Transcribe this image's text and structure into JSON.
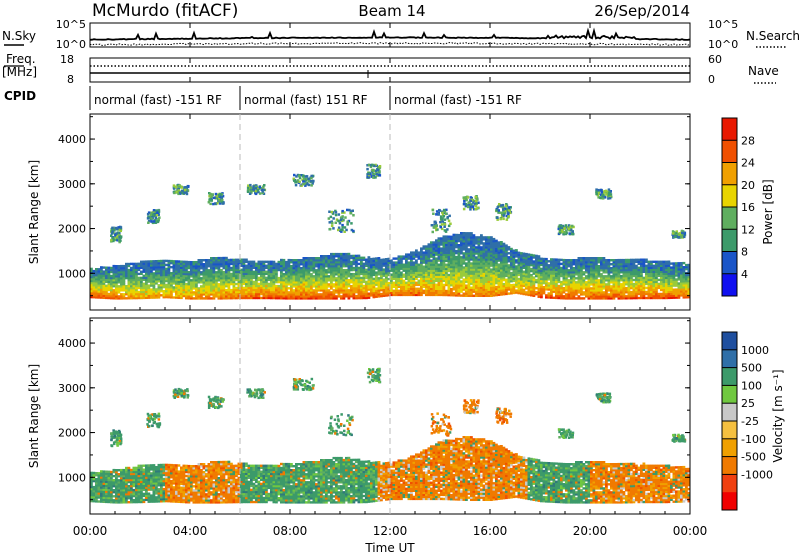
{
  "header": {
    "station": "McMurdo (fitACF)",
    "beam": "Beam 14",
    "date": "26/Sep/2014"
  },
  "noise_panel": {
    "left_label": "N.Sky",
    "right_label": "N.Search",
    "left_ticks": [
      "10^5",
      "10^0"
    ],
    "right_ticks": [
      "10^5",
      "10^0"
    ]
  },
  "freq_panel": {
    "left_label_1": "Freq.",
    "left_label_2": "[MHz]",
    "right_label": "Nave",
    "left_ticks": [
      "18",
      "8"
    ],
    "right_ticks": [
      "60",
      "0"
    ]
  },
  "cpid": {
    "label": "CPID",
    "segments": [
      {
        "start_hr": 0,
        "end_hr": 6,
        "text": "normal (fast) -151 RF"
      },
      {
        "start_hr": 6,
        "end_hr": 12,
        "text": "normal (fast) 151 RF"
      },
      {
        "start_hr": 12,
        "end_hr": 24,
        "text": "normal (fast) -151 RF"
      }
    ]
  },
  "colors": {
    "power_scale": [
      "#1010f0",
      "#1a55c8",
      "#2f6fa8",
      "#3c9a6a",
      "#5fae5f",
      "#9acb3a",
      "#e8d400",
      "#f0a000",
      "#f07a00",
      "#f05000",
      "#e81800"
    ],
    "velocity_scale": [
      "#f00000",
      "#f04010",
      "#f07a00",
      "#f0a000",
      "#f5c040",
      "#c8c8c8",
      "#70c840",
      "#3c9a6a",
      "#2f7a7a",
      "#1f4f9f"
    ]
  },
  "chart_data": [
    {
      "type": "heatmap",
      "name": "power",
      "xlabel": "Time UT",
      "ylabel": "Slant Range [km]",
      "x_ticks": [
        "00:00",
        "04:00",
        "08:00",
        "12:00",
        "16:00",
        "20:00",
        "00:00"
      ],
      "x_range_hr": [
        0,
        24
      ],
      "y_ticks": [
        1000,
        2000,
        3000,
        4000
      ],
      "ylim": [
        180,
        4560
      ],
      "colorbar_label": "Power [dB]",
      "colorbar_ticks": [
        "4",
        "8",
        "12",
        "16",
        "20",
        "24",
        "28"
      ],
      "colorbar_range": [
        0,
        32
      ],
      "main_band": [
        {
          "hr": 0,
          "lo": 450,
          "hi": 1100,
          "core": 28
        },
        {
          "hr": 1,
          "lo": 420,
          "hi": 1150,
          "core": 26
        },
        {
          "hr": 2,
          "lo": 430,
          "hi": 1250,
          "core": 22
        },
        {
          "hr": 3,
          "lo": 450,
          "hi": 1300,
          "core": 22
        },
        {
          "hr": 4,
          "lo": 420,
          "hi": 1250,
          "core": 24
        },
        {
          "hr": 5,
          "lo": 420,
          "hi": 1350,
          "core": 24
        },
        {
          "hr": 6,
          "lo": 430,
          "hi": 1300,
          "core": 26
        },
        {
          "hr": 7,
          "lo": 430,
          "hi": 1250,
          "core": 28
        },
        {
          "hr": 8,
          "lo": 420,
          "hi": 1300,
          "core": 28
        },
        {
          "hr": 9,
          "lo": 420,
          "hi": 1350,
          "core": 28
        },
        {
          "hr": 10,
          "lo": 420,
          "hi": 1450,
          "core": 28
        },
        {
          "hr": 11,
          "lo": 430,
          "hi": 1350,
          "core": 28
        },
        {
          "hr": 12,
          "lo": 500,
          "hi": 1300,
          "core": 26
        },
        {
          "hr": 13,
          "lo": 500,
          "hi": 1500,
          "core": 26
        },
        {
          "hr": 14,
          "lo": 500,
          "hi": 1800,
          "core": 24
        },
        {
          "hr": 15,
          "lo": 480,
          "hi": 1900,
          "core": 24
        },
        {
          "hr": 16,
          "lo": 480,
          "hi": 1800,
          "core": 24
        },
        {
          "hr": 17,
          "lo": 550,
          "hi": 1500,
          "core": 22
        },
        {
          "hr": 18,
          "lo": 450,
          "hi": 1350,
          "core": 28
        },
        {
          "hr": 19,
          "lo": 420,
          "hi": 1300,
          "core": 28
        },
        {
          "hr": 20,
          "lo": 420,
          "hi": 1350,
          "core": 28
        },
        {
          "hr": 21,
          "lo": 420,
          "hi": 1300,
          "core": 28
        },
        {
          "hr": 22,
          "lo": 430,
          "hi": 1300,
          "core": 28
        },
        {
          "hr": 23,
          "lo": 430,
          "hi": 1250,
          "core": 28
        },
        {
          "hr": 24,
          "lo": 450,
          "hi": 1200,
          "core": 26
        }
      ],
      "scatter_patches": [
        {
          "hr": 1.0,
          "range": 1900,
          "w_hr": 0.4,
          "h": 350
        },
        {
          "hr": 2.5,
          "range": 2300,
          "w_hr": 0.5,
          "h": 300
        },
        {
          "hr": 3.6,
          "range": 2900,
          "w_hr": 0.6,
          "h": 200
        },
        {
          "hr": 5.0,
          "range": 2700,
          "w_hr": 0.6,
          "h": 250
        },
        {
          "hr": 6.6,
          "range": 2900,
          "w_hr": 0.7,
          "h": 200
        },
        {
          "hr": 8.5,
          "range": 3100,
          "w_hr": 0.8,
          "h": 250
        },
        {
          "hr": 10.0,
          "range": 2200,
          "w_hr": 1.0,
          "h": 500
        },
        {
          "hr": 11.3,
          "range": 3300,
          "w_hr": 0.5,
          "h": 300
        },
        {
          "hr": 14.0,
          "range": 2200,
          "w_hr": 0.8,
          "h": 500
        },
        {
          "hr": 15.2,
          "range": 2600,
          "w_hr": 0.6,
          "h": 300
        },
        {
          "hr": 16.5,
          "range": 2400,
          "w_hr": 0.6,
          "h": 350
        },
        {
          "hr": 19.0,
          "range": 2000,
          "w_hr": 0.6,
          "h": 200
        },
        {
          "hr": 20.5,
          "range": 2800,
          "w_hr": 0.6,
          "h": 200
        },
        {
          "hr": 23.5,
          "range": 1900,
          "w_hr": 0.5,
          "h": 150
        }
      ]
    },
    {
      "type": "heatmap",
      "name": "velocity",
      "xlabel": "Time UT",
      "ylabel": "Slant Range [km]",
      "x_ticks": [
        "00:00",
        "04:00",
        "08:00",
        "12:00",
        "16:00",
        "20:00",
        "00:00"
      ],
      "x_range_hr": [
        0,
        24
      ],
      "y_ticks": [
        1000,
        2000,
        3000,
        4000
      ],
      "ylim": [
        180,
        4560
      ],
      "colorbar_label": "Velocity [m s⁻¹]",
      "colorbar_ticks": [
        "1000",
        "500",
        "100",
        "25",
        "-25",
        "-100",
        "-500",
        "-1000"
      ],
      "segments": [
        {
          "start_hr": 0,
          "end_hr": 3,
          "dominant": "green",
          "lo": 450,
          "hi": 1200
        },
        {
          "start_hr": 3,
          "end_hr": 6,
          "dominant": "orange",
          "lo": 450,
          "hi": 1300
        },
        {
          "start_hr": 6,
          "end_hr": 11.5,
          "dominant": "green",
          "lo": 430,
          "hi": 1450
        },
        {
          "start_hr": 11.5,
          "end_hr": 17.5,
          "dominant": "orange",
          "lo": 500,
          "hi": 1900
        },
        {
          "start_hr": 17.5,
          "end_hr": 20,
          "dominant": "green",
          "lo": 450,
          "hi": 1350
        },
        {
          "start_hr": 20,
          "end_hr": 24,
          "dominant": "orange",
          "lo": 450,
          "hi": 1350
        }
      ]
    }
  ]
}
